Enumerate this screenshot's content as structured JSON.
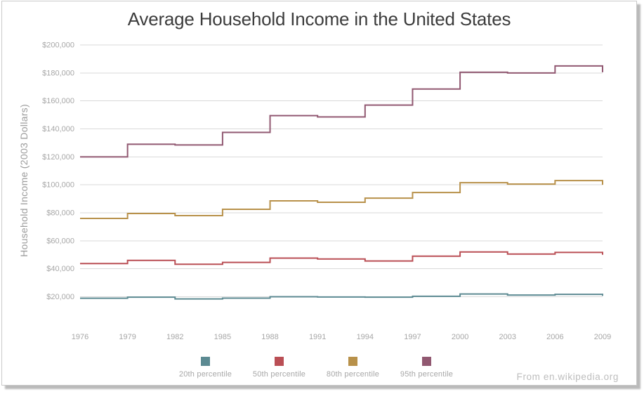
{
  "window": {
    "title": "Average Household Income in the United States",
    "attribution": "From en.wikipedia.org"
  },
  "y_axis": {
    "label": "Household Income (2003 Dollars)",
    "ticks": [
      {
        "value": 200000,
        "label": "$200,000"
      },
      {
        "value": 180000,
        "label": "$180,000"
      },
      {
        "value": 160000,
        "label": "$160,000"
      },
      {
        "value": 140000,
        "label": "$140,000"
      },
      {
        "value": 120000,
        "label": "$120,000"
      },
      {
        "value": 100000,
        "label": "$100,000"
      },
      {
        "value": 80000,
        "label": "$80,000"
      },
      {
        "value": 60000,
        "label": "$60,000"
      },
      {
        "value": 40000,
        "label": "$40,000"
      },
      {
        "value": 20000,
        "label": "$20,000"
      }
    ]
  },
  "x_axis": {
    "ticks": [
      "1976",
      "1979",
      "1982",
      "1985",
      "1988",
      "1991",
      "1994",
      "1997",
      "2000",
      "2003",
      "2006",
      "2009"
    ]
  },
  "chart_data": {
    "type": "line",
    "line_style": "step-after",
    "title": "Average Household Income in the United States",
    "xlabel": "",
    "ylabel": "Household Income (2003 Dollars)",
    "x": [
      1976,
      1979,
      1982,
      1985,
      1988,
      1991,
      1994,
      1997,
      2000,
      2003,
      2006,
      2009
    ],
    "ylim": [
      20000,
      200000
    ],
    "grid": "horizontal",
    "legend_position": "bottom",
    "series": [
      {
        "name": "20th percentile",
        "color": "#5c8a92",
        "values": [
          18900,
          19700,
          18400,
          19000,
          20000,
          19800,
          19700,
          20300,
          21900,
          21200,
          21700,
          20600
        ]
      },
      {
        "name": "50th percentile",
        "color": "#ba4f55",
        "values": [
          43700,
          46000,
          43200,
          44500,
          47600,
          47000,
          45500,
          49000,
          52000,
          50500,
          51700,
          50000
        ]
      },
      {
        "name": "80th percentile",
        "color": "#b8914a",
        "values": [
          76000,
          79500,
          78000,
          82500,
          88500,
          87500,
          90500,
          94500,
          101500,
          100500,
          103000,
          100000
        ]
      },
      {
        "name": "95th percentile",
        "color": "#91587199",
        "values": [
          120000,
          129000,
          128500,
          137500,
          149500,
          148500,
          157000,
          168500,
          180500,
          180000,
          185000,
          180500
        ]
      }
    ]
  }
}
